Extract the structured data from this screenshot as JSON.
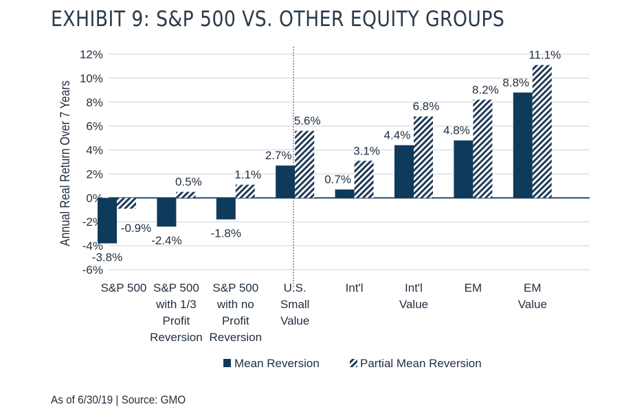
{
  "title": "EXHIBIT 9: S&P 500 VS. OTHER EQUITY GROUPS",
  "source": "As of 6/30/19 | Source: GMO",
  "colors": {
    "mean": "#0e3a5b",
    "partial_stripe": "#1f3a56",
    "grid": "#c9d3de",
    "axis": "#24466b"
  },
  "chart_data": {
    "type": "bar",
    "ylabel": "Annual  Real Return  Over 7 Years",
    "xlabel": "",
    "ylim": [
      -6,
      12
    ],
    "yticks": [
      "12%",
      "10%",
      "8%",
      "6%",
      "4%",
      "2%",
      "0%",
      "-2%",
      "-4%",
      "-6%"
    ],
    "ytick_values": [
      12,
      10,
      8,
      6,
      4,
      2,
      0,
      -2,
      -4,
      -6
    ],
    "categories": [
      [
        "S&P 500"
      ],
      [
        "S&P 500",
        "with 1/3",
        "Profit",
        "Reversion"
      ],
      [
        "S&P 500",
        "with no",
        "Profit",
        "Reversion"
      ],
      [
        "U.S.",
        "Small",
        "Value"
      ],
      [
        "Int'l"
      ],
      [
        "Int'l",
        "Value"
      ],
      [
        "EM"
      ],
      [
        "EM",
        "Value"
      ]
    ],
    "series": [
      {
        "name": "Mean Reversion",
        "pattern": "solid",
        "values": [
          -3.8,
          -2.4,
          -1.8,
          2.7,
          0.7,
          4.4,
          4.8,
          8.8
        ],
        "labels": [
          "-3.8%",
          "-2.4%",
          "-1.8%",
          "2.7%",
          "0.7%",
          "4.4%",
          "4.8%",
          "8.8%"
        ]
      },
      {
        "name": "Partial Mean Reversion",
        "pattern": "hatched",
        "values": [
          -0.9,
          0.5,
          1.1,
          5.6,
          3.1,
          6.8,
          8.2,
          11.1
        ],
        "labels": [
          "-0.9%",
          "0.5%",
          "1.1%",
          "5.6%",
          "3.1%",
          "6.8%",
          "8.2%",
          "11.1%"
        ]
      }
    ],
    "divider_after_category": 3,
    "grid": true,
    "legend": "bottom-center"
  }
}
